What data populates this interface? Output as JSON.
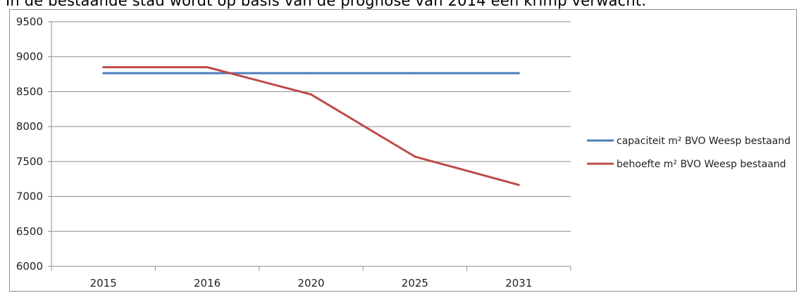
{
  "caption": "In de bestaande stad wordt op basis van de prognose van 2014 een krimp verwacht.",
  "chart_data": {
    "type": "line",
    "categories": [
      "2015",
      "2016",
      "2020",
      "2025",
      "2031"
    ],
    "ylim": [
      6000,
      9500
    ],
    "yticks": [
      6000,
      6500,
      7000,
      7500,
      8000,
      8500,
      9000,
      9500
    ],
    "grid": true,
    "legend": "right",
    "series": [
      {
        "name": "capaciteit m² BVO Weesp bestaand",
        "color": "#4a7ebb",
        "values": [
          8765,
          8765,
          8765,
          8765,
          8765
        ]
      },
      {
        "name": "behoefte m² BVO Weesp bestaand",
        "color": "#be4b48",
        "values": [
          8850,
          8850,
          8460,
          7570,
          7165
        ]
      }
    ]
  }
}
